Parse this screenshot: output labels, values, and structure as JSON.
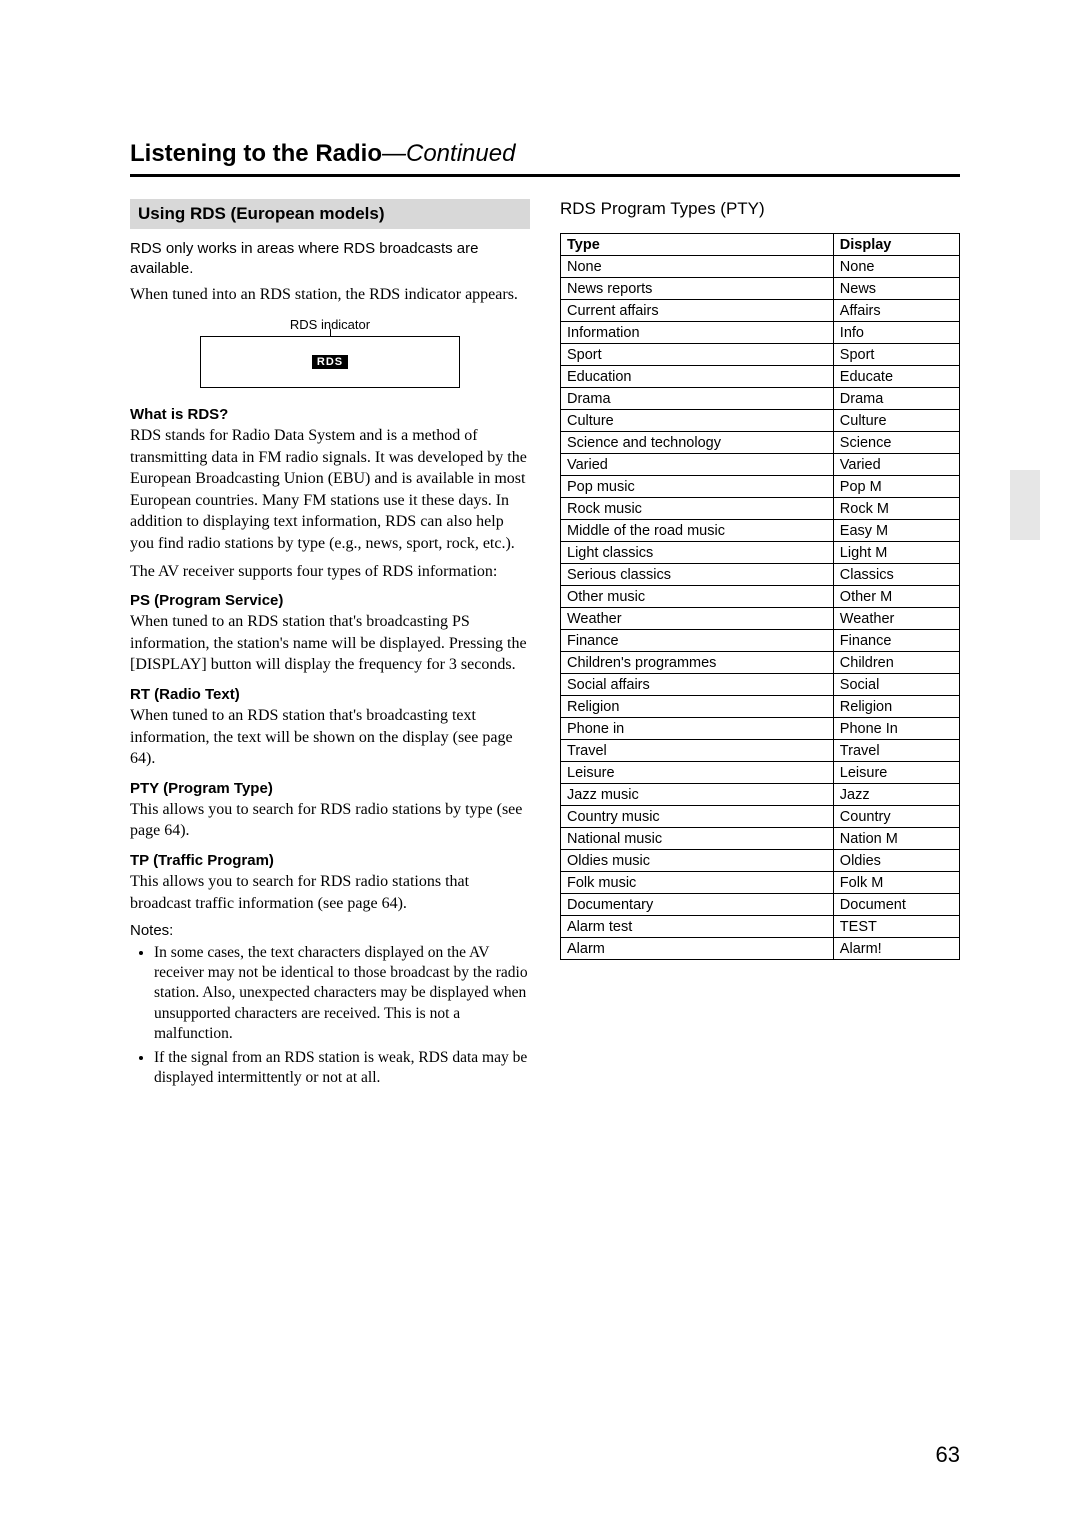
{
  "page": {
    "title_main": "Listening to the Radio",
    "title_continued": "—Continued",
    "number": "63"
  },
  "left": {
    "section_heading": "Using RDS (European models)",
    "intro_sans": "RDS only works in areas where RDS broadcasts are available.",
    "intro_serif": "When tuned into an RDS station, the RDS indicator appears.",
    "figure_label": "RDS indicator",
    "rds_badge": "RDS",
    "what_is_heading": "What is RDS?",
    "what_is_prefix": "RDS stands for ",
    "what_is_bold": "Radio Data System",
    "what_is_rest": " and is a method of transmitting data in FM radio signals. It was developed by the European Broadcasting Union (EBU) and is available in most European countries. Many FM stations use it these days. In addition to displaying text information, RDS can also help you find radio stations by type (e.g., news, sport, rock, etc.).",
    "four_types": "The AV receiver supports four types of RDS information:",
    "ps_heading": "PS (Program Service)",
    "ps_body": "When tuned to an RDS station that's broadcasting PS information, the station's name will be displayed. Pressing the [DISPLAY] button will display the frequency for 3 seconds.",
    "rt_heading": "RT (Radio Text)",
    "rt_body": "When tuned to an RDS station that's broadcasting text information, the text will be shown on the display (see page 64).",
    "pty_heading": "PTY (Program Type)",
    "pty_body": "This allows you to search for RDS radio stations by type (see page 64).",
    "tp_heading": "TP (Traffic Program)",
    "tp_body": "This allows you to search for RDS radio stations that broadcast traffic information (see page 64).",
    "notes_label": "Notes:",
    "notes": [
      "In some cases, the text characters displayed on the AV receiver may not be identical to those broadcast by the radio station. Also, unexpected characters may be displayed when unsupported characters are received. This is not a malfunction.",
      "If the signal from an RDS station is weak, RDS data may be displayed intermittently or not at all."
    ]
  },
  "right": {
    "heading": "RDS Program Types (PTY)",
    "columns": [
      "Type",
      "Display"
    ],
    "rows": [
      [
        "None",
        "None"
      ],
      [
        "News reports",
        "News"
      ],
      [
        "Current affairs",
        "Affairs"
      ],
      [
        "Information",
        "Info"
      ],
      [
        "Sport",
        "Sport"
      ],
      [
        "Education",
        "Educate"
      ],
      [
        "Drama",
        "Drama"
      ],
      [
        "Culture",
        "Culture"
      ],
      [
        "Science and technology",
        "Science"
      ],
      [
        "Varied",
        "Varied"
      ],
      [
        "Pop music",
        "Pop M"
      ],
      [
        "Rock music",
        "Rock M"
      ],
      [
        "Middle of the road music",
        "Easy M"
      ],
      [
        "Light classics",
        "Light M"
      ],
      [
        "Serious classics",
        "Classics"
      ],
      [
        "Other music",
        "Other M"
      ],
      [
        "Weather",
        "Weather"
      ],
      [
        "Finance",
        "Finance"
      ],
      [
        "Children's programmes",
        "Children"
      ],
      [
        "Social affairs",
        "Social"
      ],
      [
        "Religion",
        "Religion"
      ],
      [
        "Phone in",
        "Phone In"
      ],
      [
        "Travel",
        "Travel"
      ],
      [
        "Leisure",
        "Leisure"
      ],
      [
        "Jazz music",
        "Jazz"
      ],
      [
        "Country music",
        "Country"
      ],
      [
        "National music",
        "Nation M"
      ],
      [
        "Oldies music",
        "Oldies"
      ],
      [
        "Folk music",
        "Folk M"
      ],
      [
        "Documentary",
        "Document"
      ],
      [
        "Alarm test",
        "TEST"
      ],
      [
        "Alarm",
        "Alarm!"
      ]
    ]
  }
}
